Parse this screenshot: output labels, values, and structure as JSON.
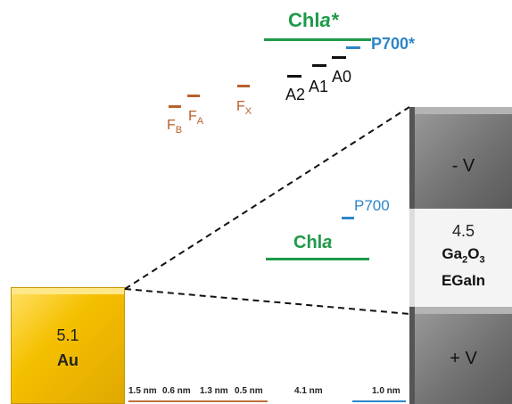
{
  "colors": {
    "chla": "#1e9a4a",
    "p700": "#2e86c8",
    "fe_s": "#b8622a",
    "quinone": "#111111",
    "gold": "#f5c000",
    "grey_top": "#7a7a7a"
  },
  "upper_levels": {
    "chla_star": {
      "prefix": "Chl",
      "suffix": "a*"
    },
    "p700_star": "P700*",
    "a0": "A0",
    "a1": "A1",
    "a2": "A2",
    "fx": {
      "main": "F",
      "sub": "X"
    },
    "fa": {
      "main": "F",
      "sub": "A"
    },
    "fb": {
      "main": "F",
      "sub": "B"
    }
  },
  "middle_levels": {
    "p700": "P700",
    "chla": {
      "prefix": "Chl",
      "suffix": "a"
    }
  },
  "au_electrode": {
    "value": "5.1",
    "label": "Au"
  },
  "right_electrode": {
    "top_label": "- V",
    "middle_value": "4.5",
    "material_main": "Ga",
    "material_sub1": "2",
    "material_mid": "O",
    "material_sub2": "3",
    "material_2": "EGaIn",
    "bottom_label": "+ V"
  },
  "distances": [
    "1.5 nm",
    "0.6 nm",
    "1.3 nm",
    "0.5 nm",
    "4.1 nm",
    "1.0 nm"
  ]
}
